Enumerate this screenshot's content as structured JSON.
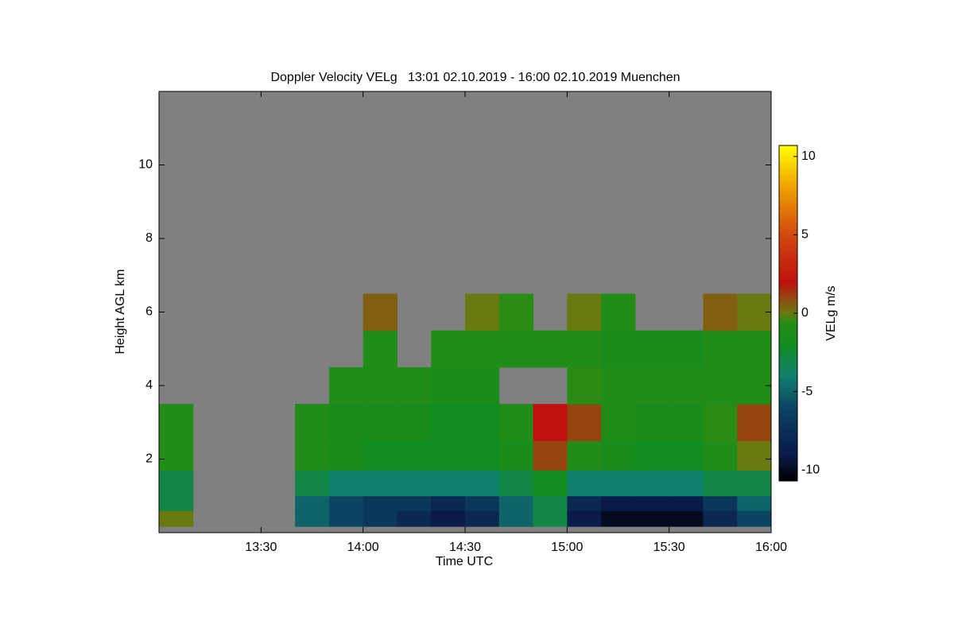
{
  "chart_data": {
    "type": "heatmap",
    "title": "Doppler Velocity VELg   13:01 02.10.2019 - 16:00 02.10.2019 Muenchen",
    "x_label": "Time UTC",
    "y_label": "Height AGL km",
    "colorbar_label": "VELg m/s",
    "xlim": [
      780,
      960
    ],
    "xticks": [
      {
        "value": 810,
        "label": "13:30"
      },
      {
        "value": 840,
        "label": "14:00"
      },
      {
        "value": 870,
        "label": "14:30"
      },
      {
        "value": 900,
        "label": "15:00"
      },
      {
        "value": 930,
        "label": "15:30"
      },
      {
        "value": 960,
        "label": "16:00"
      }
    ],
    "ylim": [
      0,
      12
    ],
    "yticks": [
      2,
      4,
      6,
      8,
      10
    ],
    "clim": [
      -10.7,
      10.7
    ],
    "cticks": [
      -10,
      -5,
      0,
      5,
      10
    ],
    "missing_color": "#808080",
    "colorscale": [
      [
        -10.7,
        "#000000"
      ],
      [
        -9,
        "#0a1a4a"
      ],
      [
        -6,
        "#0b4563"
      ],
      [
        -4,
        "#12806e"
      ],
      [
        -2,
        "#108c20"
      ],
      [
        -0.5,
        "#2a8c14"
      ],
      [
        0,
        "#6a7a10"
      ],
      [
        2,
        "#c01010"
      ],
      [
        5,
        "#d04a10"
      ],
      [
        8,
        "#f0a000"
      ],
      [
        10.7,
        "#ffff00"
      ]
    ],
    "x_edges": [
      780,
      790,
      800,
      810,
      820,
      830,
      840,
      850,
      860,
      870,
      880,
      890,
      900,
      910,
      920,
      930,
      940,
      950,
      960
    ],
    "y_edges": [
      0.17,
      0.6,
      1.0,
      1.7,
      2.5,
      3.5,
      4.5,
      5.5,
      6.5
    ],
    "z": [
      [
        0,
        null,
        null,
        null,
        -5,
        -6,
        -7,
        -8,
        -9,
        -8,
        -5,
        -3,
        -9,
        -10,
        -10,
        -10,
        -8,
        -6
      ],
      [
        -3,
        null,
        null,
        null,
        -5,
        -6,
        -7,
        -7,
        -8,
        -7,
        -5,
        -3,
        -8,
        -9,
        -9,
        -9,
        -7,
        -5
      ],
      [
        -3,
        null,
        null,
        null,
        -3,
        -4,
        -4,
        -4,
        -4,
        -4,
        -3,
        -2,
        -4,
        -4,
        -4,
        -4,
        -3,
        -3
      ],
      [
        -1,
        null,
        null,
        null,
        -1,
        -1.5,
        -2,
        -2,
        -2,
        -2,
        -1.5,
        1,
        -1,
        -1.5,
        -2,
        -2,
        -1,
        0
      ],
      [
        -1,
        null,
        null,
        null,
        -1,
        -1.5,
        -1.5,
        -1.5,
        -2,
        -2,
        -1,
        2,
        1,
        -1,
        -1.5,
        -1.5,
        -0.5,
        1
      ],
      [
        null,
        null,
        null,
        null,
        null,
        -1,
        -1,
        -1,
        -1.5,
        -1.5,
        null,
        null,
        -0.5,
        -1,
        -1,
        -1,
        -1,
        -1
      ],
      [
        null,
        null,
        null,
        null,
        null,
        null,
        -1,
        null,
        -1,
        -1,
        -1,
        -1,
        -1,
        -1.5,
        -1.5,
        -1.5,
        -1,
        -1
      ],
      [
        null,
        null,
        null,
        null,
        null,
        null,
        0.5,
        null,
        null,
        0,
        -0.5,
        null,
        0,
        -1,
        null,
        null,
        0.5,
        0
      ]
    ]
  }
}
